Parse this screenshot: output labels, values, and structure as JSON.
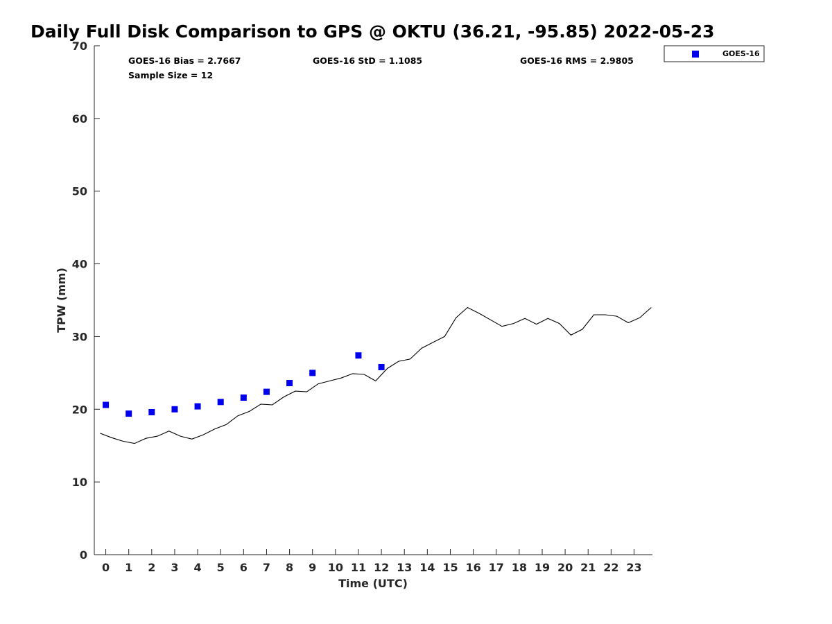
{
  "chart_data": {
    "type": "scatter",
    "title": "Daily Full Disk Comparison to GPS @ OKTU (36.21, -95.85) 2022-05-23",
    "xlabel": "Time (UTC)",
    "ylabel": "TPW (mm)",
    "xlim": [
      -0.5,
      23.8
    ],
    "ylim": [
      0,
      70
    ],
    "x_ticks": [
      "0",
      "1",
      "2",
      "3",
      "4",
      "5",
      "6",
      "7",
      "8",
      "9",
      "10",
      "11",
      "12",
      "13",
      "14",
      "15",
      "16",
      "17",
      "18",
      "19",
      "20",
      "21",
      "22",
      "23"
    ],
    "y_ticks": [
      "0",
      "10",
      "20",
      "30",
      "40",
      "50",
      "60",
      "70"
    ],
    "grid": false,
    "legend_position": "top-right",
    "stats": [
      {
        "text": "GOES-16 Bias = 2.7667"
      },
      {
        "text": "GOES-16 StD = 1.1085"
      },
      {
        "text": "GOES-16 RMS = 2.9805"
      },
      {
        "text": "Sample Size = 12"
      }
    ],
    "series": [
      {
        "name": "GOES-16",
        "kind": "scatter",
        "marker": "square",
        "color": "#0000ee",
        "x": [
          0,
          1,
          2,
          3,
          4,
          5,
          6,
          7,
          8,
          9,
          11,
          12
        ],
        "y": [
          20.6,
          19.4,
          19.6,
          20.0,
          20.4,
          21.0,
          21.6,
          22.4,
          23.6,
          25.0,
          27.4,
          25.8
        ]
      },
      {
        "kind": "line",
        "color": "#000000",
        "x": [
          -0.25,
          0.25,
          0.75,
          1.25,
          1.75,
          2.25,
          2.75,
          3.25,
          3.75,
          4.25,
          4.75,
          5.25,
          5.75,
          6.25,
          6.75,
          7.25,
          7.75,
          8.25,
          8.75,
          9.25,
          9.75,
          10.25,
          10.75,
          11.25,
          11.75,
          12.25,
          12.75,
          13.25,
          13.75,
          14.25,
          14.75,
          15.25,
          15.75,
          16.25,
          16.75,
          17.25,
          17.75,
          18.25,
          18.75,
          19.25,
          19.75,
          20.25,
          20.75,
          21.25,
          21.75,
          22.25,
          22.75,
          23.25,
          23.75
        ],
        "y": [
          16.7,
          16.1,
          15.6,
          15.3,
          16.0,
          16.3,
          17.0,
          16.3,
          15.9,
          16.5,
          17.3,
          17.9,
          19.1,
          19.7,
          20.7,
          20.6,
          21.7,
          22.5,
          22.4,
          23.5,
          23.9,
          24.3,
          24.9,
          24.8,
          23.9,
          25.6,
          26.6,
          26.9,
          28.4,
          29.2,
          30.0,
          32.6,
          34.0,
          33.2,
          32.3,
          31.4,
          31.8,
          32.5,
          31.7,
          32.5,
          31.8,
          30.2,
          31.0,
          33.0,
          33.0,
          32.8,
          31.9,
          32.6,
          34.0
        ]
      }
    ]
  }
}
